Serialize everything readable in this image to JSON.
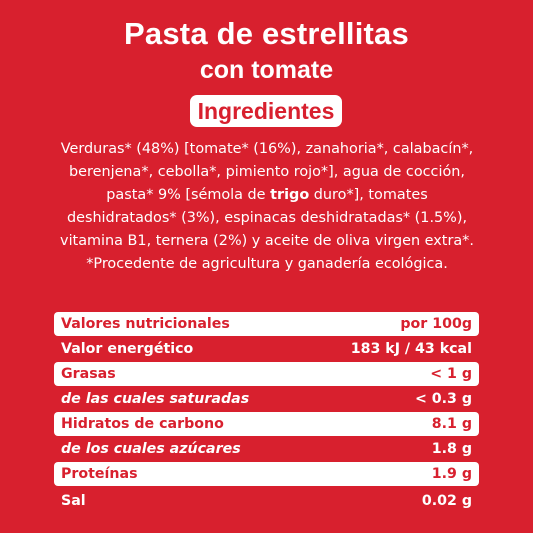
{
  "header": {
    "title_line1": "Pasta de estrellitas",
    "title_line2": "con tomate"
  },
  "ingredients": {
    "heading": "Ingredientes",
    "text_part1": "Verduras* (48%) [tomate* (16%), zanahoria*, calabacín*, berenjena*, cebolla*, pimiento rojo*], agua de cocción, pasta* 9% [sémola de ",
    "text_bold": "trigo",
    "text_part2": " duro*], tomates deshidratados* (3%), espinacas deshidratadas* (1.5%), vitamina B1, ternera (2%) y aceite de oliva virgen extra*. *Procedente de agricultura y ganadería ecológica."
  },
  "nutrition": {
    "rows": [
      {
        "label": "Valores nutricionales",
        "value": "por 100g"
      },
      {
        "label": "Valor energético",
        "value": "183 kJ / 43 kcal"
      },
      {
        "label": "Grasas",
        "value": "< 1 g"
      },
      {
        "label": "de las cuales saturadas",
        "value": "< 0.3 g"
      },
      {
        "label": "Hidratos de carbono",
        "value": "8.1 g"
      },
      {
        "label": "de los cuales azúcares",
        "value": "1.8 g"
      },
      {
        "label": "Proteínas",
        "value": "1.9 g"
      },
      {
        "label": "Sal",
        "value": "0.02 g"
      }
    ]
  },
  "colors": {
    "background": "#d8202e",
    "text_light": "#ffffff"
  }
}
